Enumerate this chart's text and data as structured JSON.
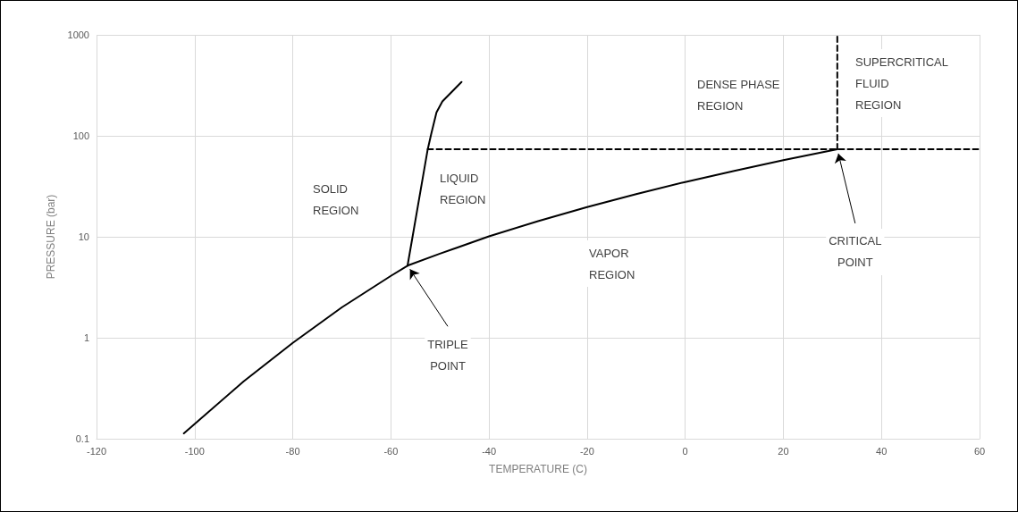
{
  "chart_data": {
    "type": "line",
    "xlabel": "TEMPERATURE (C)",
    "ylabel": "PRESSURE (bar)",
    "xlim": [
      -120,
      60
    ],
    "xticks": [
      -120,
      -100,
      -80,
      -60,
      -40,
      -20,
      0,
      20,
      40,
      60
    ],
    "ylim": [
      0.1,
      1000
    ],
    "yticks": [
      0.1,
      1,
      10,
      100,
      1000
    ],
    "log": "y",
    "grid": true,
    "marker": "none",
    "line_style": "solid",
    "series": [
      {
        "color": "#000000",
        "x": [
          -102.2,
          -100,
          -90,
          -80,
          -70,
          -60,
          -56.6,
          -50,
          -40,
          -30,
          -20,
          -10,
          0,
          10,
          20,
          31
        ],
        "values": [
          0.113,
          0.14,
          0.37,
          0.89,
          2.0,
          4.1,
          5.18,
          6.8,
          10.1,
          14.3,
          19.7,
          26.5,
          34.9,
          45.0,
          57.3,
          73.8
        ]
      },
      {
        "color": "#000000",
        "x": [
          -56.6,
          -52.5,
          -51.8,
          -50.7,
          -49.5,
          -45.6
        ],
        "values": [
          5.18,
          73,
          103,
          171,
          219,
          341
        ]
      },
      {
        "color": "#000000",
        "line_style": "dashed",
        "x": [
          -52.5,
          60
        ],
        "values": [
          73.8,
          73.8
        ]
      },
      {
        "color": "#000000",
        "line_style": "dashed",
        "x": [
          31,
          31
        ],
        "values": [
          73.8,
          1000
        ]
      }
    ],
    "annotations": [
      "SOLID\nREGION",
      "LIQUID\nREGION",
      "VAPOR\nREGION",
      "DENSE PHASE\nREGION",
      "SUPERCRITICAL\nFLUID\nREGION",
      {
        "text": "TRIPLE\nPOINT",
        "x": -56.6,
        "y": 5.18
      },
      {
        "text": "CRITICAL\nPOINT",
        "x": 31,
        "y": 73.8
      }
    ]
  }
}
